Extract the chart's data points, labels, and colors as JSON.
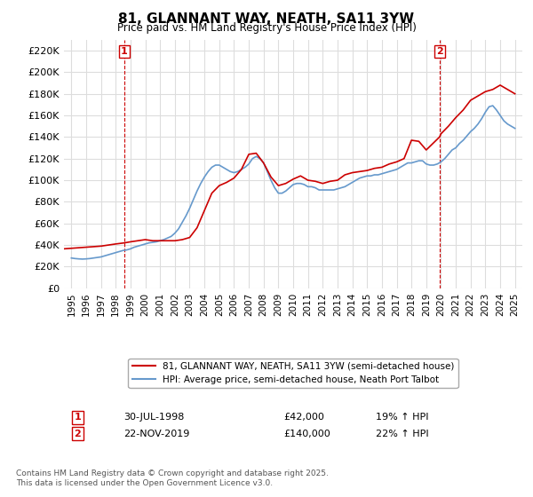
{
  "title": "81, GLANNANT WAY, NEATH, SA11 3YW",
  "subtitle": "Price paid vs. HM Land Registry's House Price Index (HPI)",
  "legend_line1": "81, GLANNANT WAY, NEATH, SA11 3YW (semi-detached house)",
  "legend_line2": "HPI: Average price, semi-detached house, Neath Port Talbot",
  "annotation1_label": "1",
  "annotation1_date": "30-JUL-1998",
  "annotation1_price": 42000,
  "annotation1_text": "19% ↑ HPI",
  "annotation2_label": "2",
  "annotation2_date": "22-NOV-2019",
  "annotation2_price": 140000,
  "annotation2_text": "22% ↑ HPI",
  "footer": "Contains HM Land Registry data © Crown copyright and database right 2025.\nThis data is licensed under the Open Government Licence v3.0.",
  "ylim": [
    0,
    230000
  ],
  "yticks": [
    0,
    20000,
    40000,
    60000,
    80000,
    100000,
    120000,
    140000,
    160000,
    180000,
    200000,
    220000
  ],
  "ytick_labels": [
    "£0",
    "£20K",
    "£40K",
    "£60K",
    "£80K",
    "£100K",
    "£120K",
    "£140K",
    "£160K",
    "£180K",
    "£200K",
    "£220K"
  ],
  "xlim_start": 1994.5,
  "xlim_end": 2025.5,
  "xtick_years": [
    1995,
    1996,
    1997,
    1998,
    1999,
    2000,
    2001,
    2002,
    2003,
    2004,
    2005,
    2006,
    2007,
    2008,
    2009,
    2010,
    2011,
    2012,
    2013,
    2014,
    2015,
    2016,
    2017,
    2018,
    2019,
    2020,
    2021,
    2022,
    2023,
    2024,
    2025
  ],
  "red_color": "#cc0000",
  "blue_color": "#6699cc",
  "bg_color": "#ffffff",
  "grid_color": "#dddddd",
  "purchase1_x": 1998.58,
  "purchase1_y": 42000,
  "purchase2_x": 2019.9,
  "purchase2_y": 140000,
  "hpi_years": [
    1995.0,
    1995.25,
    1995.5,
    1995.75,
    1996.0,
    1996.25,
    1996.5,
    1996.75,
    1997.0,
    1997.25,
    1997.5,
    1997.75,
    1998.0,
    1998.25,
    1998.5,
    1998.75,
    1999.0,
    1999.25,
    1999.5,
    1999.75,
    2000.0,
    2000.25,
    2000.5,
    2000.75,
    2001.0,
    2001.25,
    2001.5,
    2001.75,
    2002.0,
    2002.25,
    2002.5,
    2002.75,
    2003.0,
    2003.25,
    2003.5,
    2003.75,
    2004.0,
    2004.25,
    2004.5,
    2004.75,
    2005.0,
    2005.25,
    2005.5,
    2005.75,
    2006.0,
    2006.25,
    2006.5,
    2006.75,
    2007.0,
    2007.25,
    2007.5,
    2007.75,
    2008.0,
    2008.25,
    2008.5,
    2008.75,
    2009.0,
    2009.25,
    2009.5,
    2009.75,
    2010.0,
    2010.25,
    2010.5,
    2010.75,
    2011.0,
    2011.25,
    2011.5,
    2011.75,
    2012.0,
    2012.25,
    2012.5,
    2012.75,
    2013.0,
    2013.25,
    2013.5,
    2013.75,
    2014.0,
    2014.25,
    2014.5,
    2014.75,
    2015.0,
    2015.25,
    2015.5,
    2015.75,
    2016.0,
    2016.25,
    2016.5,
    2016.75,
    2017.0,
    2017.25,
    2017.5,
    2017.75,
    2018.0,
    2018.25,
    2018.5,
    2018.75,
    2019.0,
    2019.25,
    2019.5,
    2019.75,
    2020.0,
    2020.25,
    2020.5,
    2020.75,
    2021.0,
    2021.25,
    2021.5,
    2021.75,
    2022.0,
    2022.25,
    2022.5,
    2022.75,
    2023.0,
    2023.25,
    2023.5,
    2023.75,
    2024.0,
    2024.25,
    2024.5,
    2024.75,
    2025.0
  ],
  "hpi_values": [
    28000,
    27500,
    27200,
    27000,
    27200,
    27500,
    28000,
    28500,
    29000,
    30000,
    31000,
    32000,
    33000,
    34000,
    35000,
    35500,
    36500,
    38000,
    39000,
    40000,
    41000,
    42000,
    42500,
    43000,
    44000,
    45000,
    46500,
    48000,
    51000,
    55000,
    61000,
    67000,
    74000,
    82000,
    90000,
    97000,
    103000,
    108000,
    112000,
    114000,
    114000,
    112000,
    110000,
    108000,
    107000,
    108000,
    110000,
    112000,
    115000,
    120000,
    122000,
    120000,
    116000,
    108000,
    100000,
    93000,
    88000,
    88000,
    90000,
    93000,
    96000,
    97000,
    97000,
    96000,
    94000,
    94000,
    93000,
    91000,
    91000,
    91000,
    91000,
    91000,
    92000,
    93000,
    94000,
    96000,
    98000,
    100000,
    102000,
    103000,
    104000,
    104000,
    105000,
    105000,
    106000,
    107000,
    108000,
    109000,
    110000,
    112000,
    114000,
    116000,
    116000,
    117000,
    118000,
    118000,
    115000,
    114000,
    114000,
    115000,
    117000,
    120000,
    124000,
    128000,
    130000,
    134000,
    137000,
    141000,
    145000,
    148000,
    152000,
    157000,
    163000,
    168000,
    169000,
    165000,
    160000,
    155000,
    152000,
    150000,
    148000
  ],
  "red_years": [
    1994.0,
    1995.0,
    1996.0,
    1997.0,
    1997.5,
    1998.0,
    1998.58,
    1999.0,
    1999.5,
    2000.0,
    2000.5,
    2001.0,
    2001.5,
    2002.0,
    2002.5,
    2003.0,
    2003.5,
    2004.0,
    2004.5,
    2005.0,
    2005.5,
    2006.0,
    2006.5,
    2007.0,
    2007.5,
    2008.0,
    2008.5,
    2009.0,
    2009.5,
    2010.0,
    2010.5,
    2011.0,
    2011.5,
    2012.0,
    2012.5,
    2013.0,
    2013.5,
    2014.0,
    2014.5,
    2015.0,
    2015.5,
    2016.0,
    2016.5,
    2017.0,
    2017.5,
    2018.0,
    2018.5,
    2019.0,
    2019.9,
    2020.0,
    2020.5,
    2021.0,
    2021.5,
    2022.0,
    2022.5,
    2023.0,
    2023.5,
    2024.0,
    2024.5,
    2025.0
  ],
  "red_values": [
    36000,
    37000,
    38000,
    39000,
    40000,
    41000,
    42000,
    43000,
    44000,
    45000,
    44000,
    44000,
    44000,
    44000,
    45000,
    47000,
    56000,
    72000,
    88000,
    95000,
    98000,
    102000,
    110000,
    124000,
    125000,
    116000,
    103000,
    95000,
    97000,
    101000,
    104000,
    100000,
    99000,
    97000,
    99000,
    100000,
    105000,
    107000,
    108000,
    109000,
    111000,
    112000,
    115000,
    117000,
    120000,
    137000,
    136000,
    128000,
    140000,
    143000,
    150000,
    158000,
    165000,
    174000,
    178000,
    182000,
    184000,
    188000,
    184000,
    180000
  ]
}
